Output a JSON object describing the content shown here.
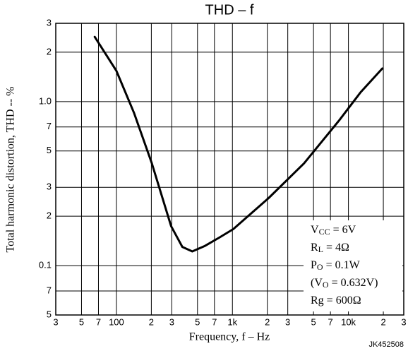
{
  "chart_data": {
    "type": "line",
    "title": "THD – f",
    "xlabel": "Frequency, f – Hz",
    "ylabel": "Total harmonic distortion, THD -- %",
    "log_x": true,
    "log_y": true,
    "grid": true,
    "xlim": [
      30,
      30000
    ],
    "xticks": [
      {
        "value": 30,
        "label": "3"
      },
      {
        "value": 50,
        "label": "5"
      },
      {
        "value": 70,
        "label": "7"
      },
      100,
      {
        "value": 200,
        "label": "2"
      },
      {
        "value": 300,
        "label": "3"
      },
      {
        "value": 500,
        "label": "5"
      },
      {
        "value": 700,
        "label": "7"
      },
      {
        "value": 1000,
        "label": "1k"
      },
      {
        "value": 2000,
        "label": "2"
      },
      {
        "value": 3000,
        "label": "3"
      },
      {
        "value": 5000,
        "label": "5"
      },
      {
        "value": 7000,
        "label": "7"
      },
      {
        "value": 10000,
        "label": "10k"
      },
      {
        "value": 20000,
        "label": "2"
      },
      {
        "value": 30000,
        "label": "3"
      }
    ],
    "ylim": [
      0.05,
      3
    ],
    "yticks": [
      3,
      2,
      {
        "value": 1,
        "label": "1.0"
      },
      {
        "value": 0.7,
        "label": "7"
      },
      {
        "value": 0.5,
        "label": "5"
      },
      {
        "value": 0.3,
        "label": "3"
      },
      {
        "value": 0.2,
        "label": "2"
      },
      0.1,
      {
        "value": 0.07,
        "label": "7"
      },
      {
        "value": 0.05,
        "label": "5"
      }
    ],
    "series": [
      {
        "color": "#000000",
        "x": [
          65,
          100,
          142,
          202,
          296,
          370,
          451,
          581,
          769,
          1017,
          2050,
          4140,
          8350,
          12750,
          19600
        ],
        "values": [
          2.48,
          1.54,
          0.85,
          0.42,
          0.174,
          0.13,
          0.122,
          0.132,
          0.148,
          0.167,
          0.258,
          0.42,
          0.77,
          1.14,
          1.59
        ]
      }
    ],
    "annotations": [
      [
        "V",
        "CC",
        " = 6V"
      ],
      [
        "R",
        "L",
        " = 4Ω"
      ],
      [
        "P",
        "O",
        " = 0.1W"
      ],
      [
        "(V",
        "O",
        " = 0.632V)"
      ],
      [
        "Rg = 600Ω"
      ]
    ],
    "footnote": "JK452508"
  }
}
